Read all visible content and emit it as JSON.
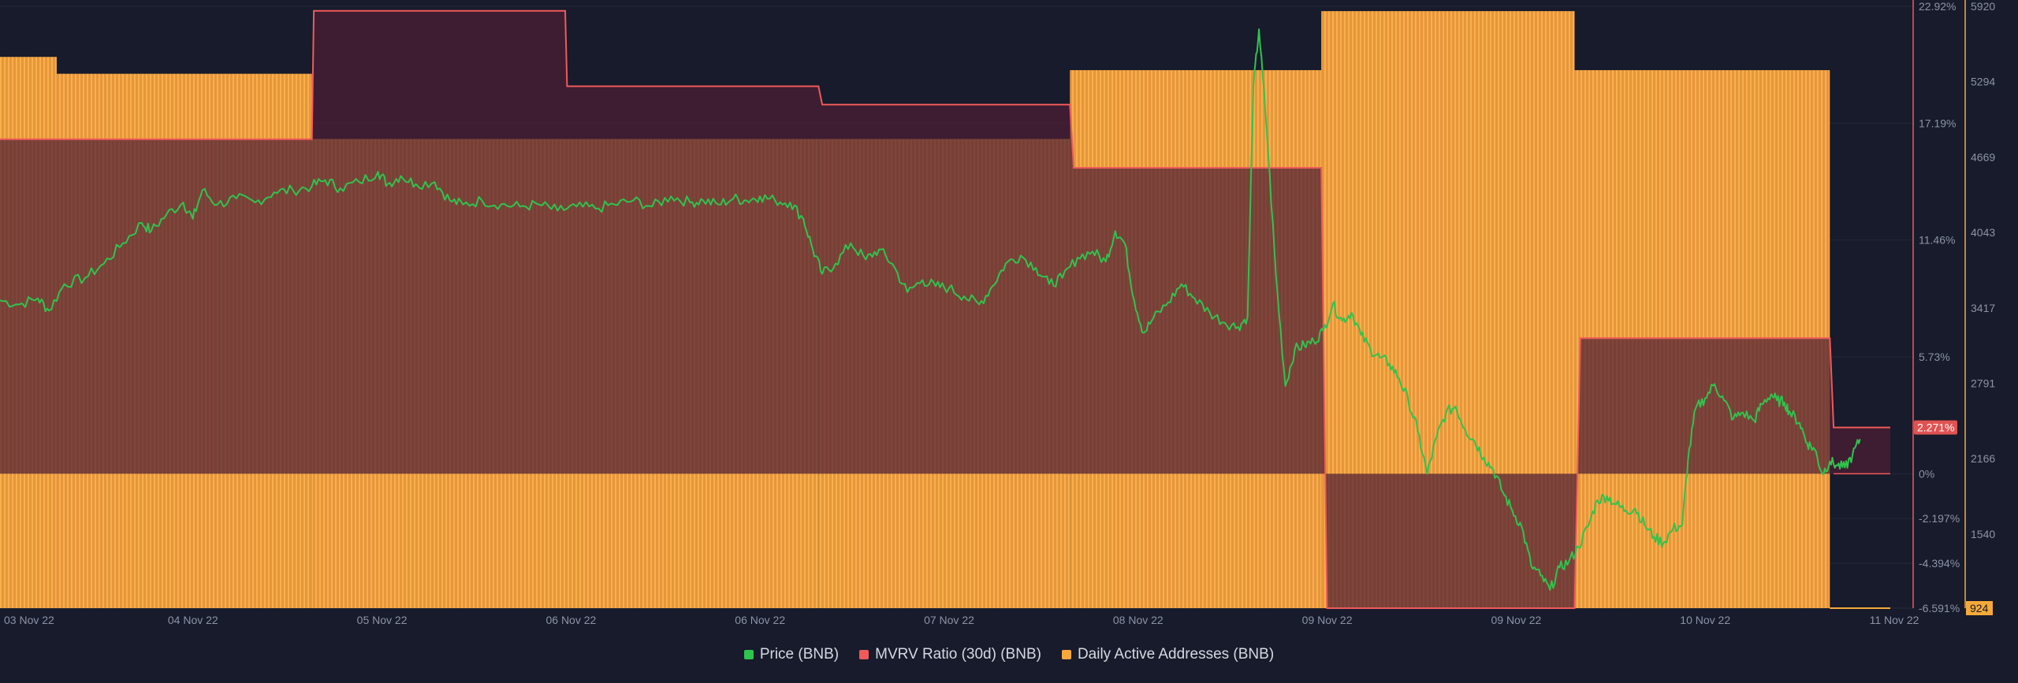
{
  "chart_data": {
    "type": "bar-line",
    "x_labels": [
      "03 Nov 22",
      "04 Nov 22",
      "05 Nov 22",
      "06 Nov 22",
      "06 Nov 22",
      "07 Nov 22",
      "08 Nov 22",
      "09 Nov 22",
      "09 Nov 22",
      "10 Nov 22",
      "11 Nov 22"
    ],
    "mvrv_axis": {
      "ticks": [
        "22.92%",
        "17.19%",
        "11.46%",
        "5.73%",
        "0%",
        "-2.197%",
        "-4.394%",
        "-6.591%"
      ],
      "tick_values": [
        22.92,
        17.19,
        11.46,
        5.73,
        0,
        -2.197,
        -4.394,
        -6.591
      ],
      "current_label": "2.271%",
      "current_value": 2.271
    },
    "address_axis": {
      "ticks": [
        "5920",
        "5294",
        "4669",
        "4043",
        "3417",
        "2791",
        "2166",
        "1540"
      ],
      "tick_values": [
        5920,
        5294,
        4669,
        4043,
        3417,
        2791,
        2166,
        1540
      ],
      "min": 924,
      "min_label": "924"
    },
    "series": [
      {
        "name": "Price (BNB)",
        "color": "#2ec44e",
        "comment": "price shape expressed on the MVRV % scale (price axis is not printed)",
        "points": [
          [
            0.0,
            8.5
          ],
          [
            0.1,
            8.3
          ],
          [
            0.2,
            8.6
          ],
          [
            0.26,
            8.0
          ],
          [
            0.34,
            9.3
          ],
          [
            0.45,
            9.6
          ],
          [
            0.55,
            10.3
          ],
          [
            0.65,
            11.3
          ],
          [
            0.75,
            12.3
          ],
          [
            0.8,
            11.9
          ],
          [
            0.88,
            12.7
          ],
          [
            0.97,
            13.3
          ],
          [
            1.02,
            12.5
          ],
          [
            1.07,
            13.9
          ],
          [
            1.15,
            13.2
          ],
          [
            1.25,
            13.5
          ],
          [
            1.35,
            13.3
          ],
          [
            1.45,
            13.8
          ],
          [
            1.55,
            13.9
          ],
          [
            1.65,
            14.1
          ],
          [
            1.72,
            14.4
          ],
          [
            1.8,
            14.0
          ],
          [
            1.9,
            14.3
          ],
          [
            2.0,
            14.8
          ],
          [
            2.05,
            14.2
          ],
          [
            2.12,
            14.6
          ],
          [
            2.2,
            14.2
          ],
          [
            2.3,
            14.3
          ],
          [
            2.38,
            13.4
          ],
          [
            2.45,
            13.2
          ],
          [
            2.55,
            13.4
          ],
          [
            2.65,
            13.2
          ],
          [
            2.75,
            13.1
          ],
          [
            2.85,
            13.2
          ],
          [
            2.95,
            12.9
          ],
          [
            3.05,
            13.1
          ],
          [
            3.15,
            13.0
          ],
          [
            3.25,
            13.2
          ],
          [
            3.35,
            13.4
          ],
          [
            3.45,
            13.1
          ],
          [
            3.55,
            13.6
          ],
          [
            3.65,
            13.3
          ],
          [
            3.72,
            13.4
          ],
          [
            3.8,
            13.2
          ],
          [
            3.88,
            13.5
          ],
          [
            3.95,
            13.4
          ],
          [
            4.02,
            13.6
          ],
          [
            4.1,
            13.4
          ],
          [
            4.18,
            13.3
          ],
          [
            4.25,
            12.5
          ],
          [
            4.3,
            11.0
          ],
          [
            4.35,
            9.8
          ],
          [
            4.42,
            10.3
          ],
          [
            4.5,
            11.3
          ],
          [
            4.58,
            10.5
          ],
          [
            4.65,
            11.0
          ],
          [
            4.72,
            10.3
          ],
          [
            4.8,
            8.9
          ],
          [
            4.88,
            9.5
          ],
          [
            4.95,
            9.2
          ],
          [
            5.02,
            9.1
          ],
          [
            5.1,
            8.7
          ],
          [
            5.18,
            8.3
          ],
          [
            5.25,
            9.2
          ],
          [
            5.32,
            10.3
          ],
          [
            5.4,
            10.7
          ],
          [
            5.48,
            10.1
          ],
          [
            5.55,
            9.3
          ],
          [
            5.62,
            9.6
          ],
          [
            5.7,
            10.6
          ],
          [
            5.78,
            10.9
          ],
          [
            5.85,
            10.4
          ],
          [
            5.9,
            11.9
          ],
          [
            5.95,
            11.3
          ],
          [
            6.0,
            8.5
          ],
          [
            6.05,
            6.9
          ],
          [
            6.1,
            7.6
          ],
          [
            6.18,
            8.4
          ],
          [
            6.25,
            9.3
          ],
          [
            6.32,
            8.6
          ],
          [
            6.4,
            7.9
          ],
          [
            6.48,
            7.4
          ],
          [
            6.55,
            7.2
          ],
          [
            6.6,
            7.7
          ],
          [
            6.63,
            18.9
          ],
          [
            6.66,
            21.8
          ],
          [
            6.7,
            17.0
          ],
          [
            6.75,
            9.7
          ],
          [
            6.8,
            4.3
          ],
          [
            6.85,
            6.1
          ],
          [
            6.9,
            6.3
          ],
          [
            6.95,
            6.5
          ],
          [
            7.0,
            7.0
          ],
          [
            7.05,
            8.3
          ],
          [
            7.1,
            7.5
          ],
          [
            7.15,
            7.9
          ],
          [
            7.2,
            6.8
          ],
          [
            7.25,
            6.1
          ],
          [
            7.3,
            5.7
          ],
          [
            7.35,
            5.4
          ],
          [
            7.4,
            4.7
          ],
          [
            7.45,
            3.6
          ],
          [
            7.5,
            2.1
          ],
          [
            7.55,
            0.0
          ],
          [
            7.6,
            1.8
          ],
          [
            7.65,
            3.0
          ],
          [
            7.7,
            3.3
          ],
          [
            7.75,
            2.2
          ],
          [
            7.8,
            1.6
          ],
          [
            7.85,
            0.8
          ],
          [
            7.9,
            0.2
          ],
          [
            7.95,
            -0.9
          ],
          [
            8.0,
            -1.8
          ],
          [
            8.05,
            -2.6
          ],
          [
            8.1,
            -4.5
          ],
          [
            8.15,
            -5.0
          ],
          [
            8.2,
            -5.7
          ],
          [
            8.25,
            -4.6
          ],
          [
            8.3,
            -4.3
          ],
          [
            8.35,
            -3.6
          ],
          [
            8.4,
            -2.6
          ],
          [
            8.45,
            -1.3
          ],
          [
            8.5,
            -1.1
          ],
          [
            8.55,
            -1.5
          ],
          [
            8.6,
            -1.8
          ],
          [
            8.65,
            -1.7
          ],
          [
            8.7,
            -2.5
          ],
          [
            8.75,
            -3.1
          ],
          [
            8.8,
            -3.4
          ],
          [
            8.85,
            -2.7
          ],
          [
            8.9,
            -2.5
          ],
          [
            8.93,
            0.7
          ],
          [
            8.97,
            3.2
          ],
          [
            9.02,
            3.7
          ],
          [
            9.07,
            4.4
          ],
          [
            9.12,
            3.6
          ],
          [
            9.17,
            2.7
          ],
          [
            9.22,
            3.0
          ],
          [
            9.28,
            2.6
          ],
          [
            9.32,
            3.4
          ],
          [
            9.37,
            3.9
          ],
          [
            9.4,
            3.6
          ],
          [
            9.44,
            3.5
          ],
          [
            9.47,
            3.0
          ],
          [
            9.52,
            2.5
          ],
          [
            9.56,
            1.5
          ],
          [
            9.6,
            1.2
          ],
          [
            9.64,
            0.0
          ],
          [
            9.68,
            0.6
          ],
          [
            9.72,
            0.4
          ],
          [
            9.76,
            0.3
          ],
          [
            9.8,
            0.9
          ],
          [
            9.84,
            1.7
          ]
        ]
      },
      {
        "name": "MVRV Ratio (30d) (BNB)",
        "color": "#f05a5a",
        "points": [
          [
            0.0,
            16.4
          ],
          [
            1.65,
            16.4
          ],
          [
            1.66,
            22.7
          ],
          [
            2.99,
            22.7
          ],
          [
            3.0,
            19.0
          ],
          [
            4.33,
            19.0
          ],
          [
            4.35,
            18.1
          ],
          [
            5.66,
            18.1
          ],
          [
            5.68,
            15.0
          ],
          [
            6.99,
            15.0
          ],
          [
            7.02,
            -6.59
          ],
          [
            8.33,
            -6.59
          ],
          [
            8.36,
            6.65
          ],
          [
            9.68,
            6.65
          ],
          [
            9.7,
            2.271
          ],
          [
            10.0,
            2.271
          ]
        ]
      },
      {
        "name": "Daily Active Addresses (BNB)",
        "color": "#f6a93b",
        "comment": "daily active addresses per time segment",
        "segments": [
          [
            0.0,
            0.3,
            5500
          ],
          [
            0.3,
            1.65,
            5360
          ],
          [
            1.65,
            2.99,
            4819
          ],
          [
            2.99,
            4.33,
            4819
          ],
          [
            4.33,
            5.66,
            4819
          ],
          [
            5.66,
            6.99,
            5390
          ],
          [
            6.99,
            8.33,
            5880
          ],
          [
            8.33,
            9.68,
            5390
          ],
          [
            9.68,
            10.0,
            924
          ]
        ]
      }
    ],
    "legend_position": "bottom-center",
    "grid": true
  },
  "legend": [
    {
      "label": "Price (BNB)",
      "color": "#2ec44e"
    },
    {
      "label": "MVRV Ratio (30d) (BNB)",
      "color": "#f05a5a"
    },
    {
      "label": "Daily Active Addresses (BNB)",
      "color": "#f6a93b"
    }
  ]
}
